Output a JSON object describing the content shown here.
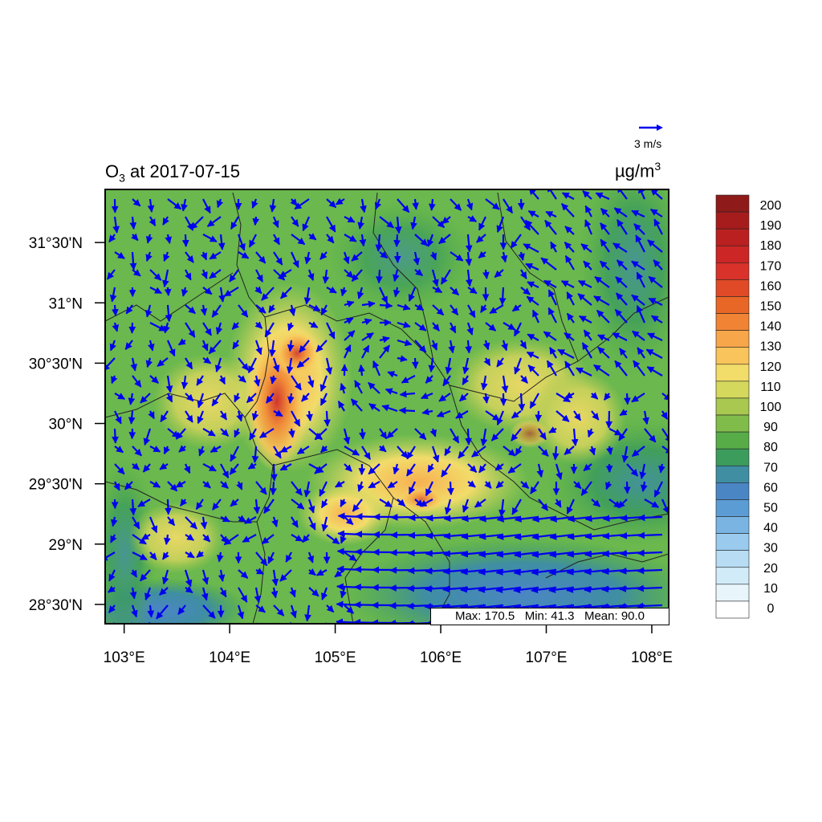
{
  "map": {
    "title_species": "O",
    "title_subscript": "3",
    "title_suffix": " at 2017-07-15",
    "units_base": "µg/m",
    "units_superscript": "3",
    "reference_vector_label": "3 m/s",
    "stats": {
      "max_label": "Max:",
      "max": "170.5",
      "min_label": "Min:",
      "min": "41.3",
      "mean_label": "Mean:",
      "mean": "90.0"
    },
    "lon_ticks": [
      "103°E",
      "104°E",
      "105°E",
      "106°E",
      "107°E",
      "108°E"
    ],
    "lat_ticks": [
      "31°30'N",
      "31°N",
      "30°30'N",
      "30°N",
      "29°30'N",
      "29°N",
      "28°30'N"
    ],
    "lon_values": [
      103,
      104,
      105,
      106,
      107,
      108
    ],
    "lat_values": [
      31.5,
      31.0,
      30.5,
      30.0,
      29.5,
      29.0,
      28.5
    ],
    "extent": {
      "lon_min": 102.82,
      "lon_max": 108.16,
      "lat_min": 28.34,
      "lat_max": 31.94
    },
    "vector_color": "#0000ee"
  },
  "colorbar": {
    "labels": [
      "200",
      "190",
      "180",
      "170",
      "160",
      "150",
      "140",
      "130",
      "120",
      "110",
      "100",
      "90",
      "80",
      "70",
      "60",
      "50",
      "40",
      "30",
      "20",
      "10",
      "0"
    ],
    "colors": [
      "#8e1a1a",
      "#a61c1c",
      "#bb2020",
      "#cc2626",
      "#d9322a",
      "#e04a26",
      "#e86726",
      "#f08434",
      "#f7a64a",
      "#f9c45c",
      "#f2dc6a",
      "#d4d85c",
      "#a8c850",
      "#80bc4a",
      "#58ac48",
      "#3c9c5c",
      "#3f8ea2",
      "#4b86c4",
      "#5c9cd4",
      "#7ab4e2",
      "#9acbee",
      "#b7dcf3",
      "#d2ebf8",
      "#e8f5fb",
      "#ffffff"
    ]
  }
}
